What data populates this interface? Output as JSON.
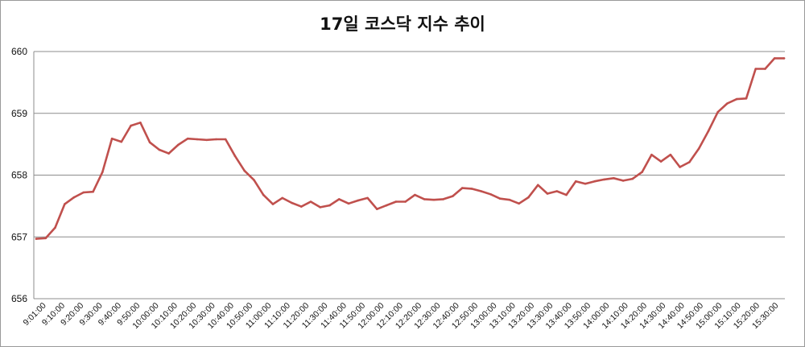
{
  "chart_data": {
    "type": "line",
    "title": "17일 코스닥 지수 추이",
    "xlabel": "",
    "ylabel": "",
    "ylim": [
      656,
      660
    ],
    "yticks": [
      "656",
      "657",
      "658",
      "659",
      "660"
    ],
    "grid": true,
    "legend": "none",
    "line_color": "#c0504d",
    "grid_color": "#8c8c8c",
    "x_tick_labels": [
      "9:01:00",
      "9:10:00",
      "9:20:00",
      "9:30:00",
      "9:40:00",
      "9:50:00",
      "10:00:00",
      "10:10:00",
      "10:20:00",
      "10:30:00",
      "10:40:00",
      "10:50:00",
      "11:00:00",
      "11:10:00",
      "11:20:00",
      "11:30:00",
      "11:40:00",
      "11:50:00",
      "12:00:00",
      "12:10:00",
      "12:20:00",
      "12:30:00",
      "12:40:00",
      "12:50:00",
      "13:00:00",
      "13:10:00",
      "13:20:00",
      "13:30:00",
      "13:40:00",
      "13:50:00",
      "14:00:00",
      "14:10:00",
      "14:20:00",
      "14:30:00",
      "14:40:00",
      "14:50:00",
      "15:00:00",
      "15:10:00",
      "15:20:00",
      "15:30:00"
    ],
    "values": [
      656.97,
      656.98,
      657.15,
      657.53,
      657.64,
      657.72,
      657.73,
      658.05,
      658.59,
      658.54,
      658.8,
      658.85,
      658.53,
      658.41,
      658.35,
      658.49,
      658.59,
      658.58,
      658.57,
      658.58,
      658.58,
      658.31,
      658.07,
      657.92,
      657.68,
      657.53,
      657.63,
      657.55,
      657.49,
      657.57,
      657.48,
      657.51,
      657.61,
      657.54,
      657.59,
      657.63,
      657.45,
      657.51,
      657.57,
      657.57,
      657.68,
      657.61,
      657.6,
      657.61,
      657.66,
      657.79,
      657.78,
      657.74,
      657.69,
      657.62,
      657.6,
      657.54,
      657.64,
      657.84,
      657.7,
      657.74,
      657.68,
      657.9,
      657.86,
      657.9,
      657.93,
      657.95,
      657.91,
      657.94,
      658.05,
      658.33,
      658.22,
      658.33,
      658.13,
      658.21,
      658.43,
      658.71,
      659.02,
      659.16,
      659.23,
      659.24,
      659.72,
      659.72,
      659.89,
      659.89
    ]
  }
}
